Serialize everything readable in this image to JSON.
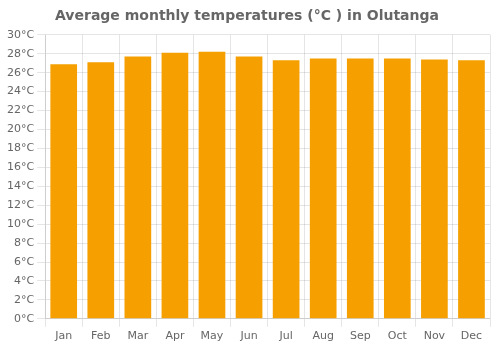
{
  "chart_data": {
    "type": "bar",
    "title": "Average monthly temperatures (°C ) in Olutanga",
    "categories": [
      "Jan",
      "Feb",
      "Mar",
      "Apr",
      "May",
      "Jun",
      "Jul",
      "Aug",
      "Sep",
      "Oct",
      "Nov",
      "Dec"
    ],
    "values": [
      26.9,
      27.1,
      27.7,
      28.1,
      28.2,
      27.7,
      27.3,
      27.5,
      27.5,
      27.5,
      27.4,
      27.3
    ],
    "color": "#F5A000",
    "ylim": [
      0,
      30
    ],
    "yticks": [
      {
        "value": 0,
        "label": "0°C"
      },
      {
        "value": 2,
        "label": "2°C"
      },
      {
        "value": 4,
        "label": "4°C"
      },
      {
        "value": 6,
        "label": "6°C"
      },
      {
        "value": 8,
        "label": "8°C"
      },
      {
        "value": 10,
        "label": "10°C"
      },
      {
        "value": 12,
        "label": "12°C"
      },
      {
        "value": 14,
        "label": "14°C"
      },
      {
        "value": 16,
        "label": "16°C"
      },
      {
        "value": 18,
        "label": "18°C"
      },
      {
        "value": 20,
        "label": "20°C"
      },
      {
        "value": 22,
        "label": "22°C"
      },
      {
        "value": 24,
        "label": "24°C"
      },
      {
        "value": 26,
        "label": "26°C"
      },
      {
        "value": 28,
        "label": "28°C"
      },
      {
        "value": 30,
        "label": "30°C"
      }
    ],
    "grid": true
  }
}
